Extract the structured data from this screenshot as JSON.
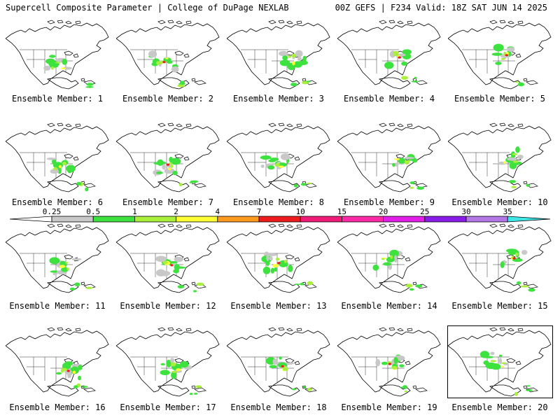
{
  "header": {
    "left": "Supercell Composite Parameter | College of DuPage NEXLAB",
    "right": "00Z GEFS | F234 Valid: 18Z SAT JUN 14 2025"
  },
  "colorbar": {
    "labels": [
      "0.25",
      "0.5",
      "1",
      "2",
      "4",
      "7",
      "10",
      "15",
      "20",
      "25",
      "30",
      "35"
    ],
    "colors": [
      "#ffffff",
      "#c8c8c8",
      "#3ee23e",
      "#a8f03a",
      "#ffff33",
      "#ff9a1f",
      "#ee1c1c",
      "#f01a78",
      "#ff2aa8",
      "#e21ee8",
      "#8a1ce8",
      "#b478e6",
      "#3ee6e6"
    ]
  },
  "members": [
    {
      "label": "Ensemble Member: 1"
    },
    {
      "label": "Ensemble Member: 2"
    },
    {
      "label": "Ensemble Member: 3"
    },
    {
      "label": "Ensemble Member: 4"
    },
    {
      "label": "Ensemble Member: 5"
    },
    {
      "label": "Ensemble Member: 6"
    },
    {
      "label": "Ensemble Member: 7"
    },
    {
      "label": "Ensemble Member: 8"
    },
    {
      "label": "Ensemble Member: 9"
    },
    {
      "label": "Ensemble Member: 10"
    },
    {
      "label": "Ensemble Member: 11"
    },
    {
      "label": "Ensemble Member: 12"
    },
    {
      "label": "Ensemble Member: 13"
    },
    {
      "label": "Ensemble Member: 14"
    },
    {
      "label": "Ensemble Member: 15"
    },
    {
      "label": "Ensemble Member: 16"
    },
    {
      "label": "Ensemble Member: 17"
    },
    {
      "label": "Ensemble Member: 18"
    },
    {
      "label": "Ensemble Member: 19"
    },
    {
      "label": "Ensemble Member: 20"
    }
  ]
}
